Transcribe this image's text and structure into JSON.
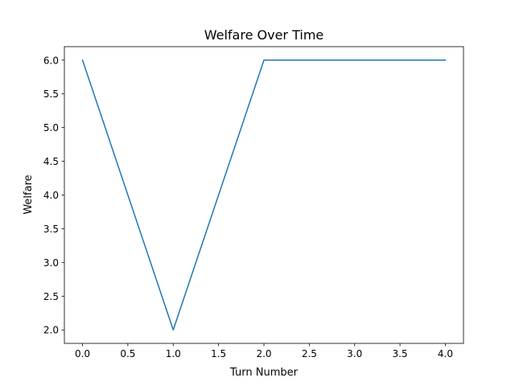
{
  "chart_data": {
    "type": "line",
    "title": "Welfare Over Time",
    "xlabel": "Turn Number",
    "ylabel": "Welfare",
    "x": [
      0,
      1,
      2,
      3,
      4
    ],
    "series": [
      {
        "values": [
          6,
          2,
          6,
          6,
          6
        ],
        "color": "#1f77b4"
      }
    ],
    "xlim": [
      -0.2,
      4.2
    ],
    "ylim": [
      1.8,
      6.2
    ],
    "xticks": [
      0.0,
      0.5,
      1.0,
      1.5,
      2.0,
      2.5,
      3.0,
      3.5,
      4.0
    ],
    "xtick_labels": [
      "0.0",
      "0.5",
      "1.0",
      "1.5",
      "2.0",
      "2.5",
      "3.0",
      "3.5",
      "4.0"
    ],
    "yticks": [
      2.0,
      2.5,
      3.0,
      3.5,
      4.0,
      4.5,
      5.0,
      5.5,
      6.0
    ],
    "ytick_labels": [
      "2.0",
      "2.5",
      "3.0",
      "3.5",
      "4.0",
      "4.5",
      "5.0",
      "5.5",
      "6.0"
    ],
    "grid": false,
    "legend": false
  }
}
